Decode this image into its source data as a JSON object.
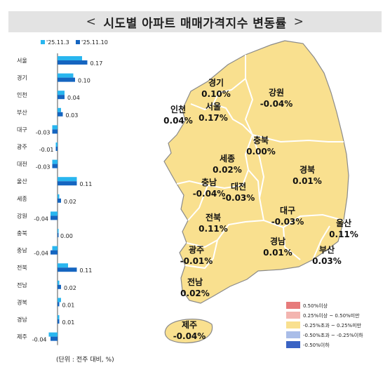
{
  "header": {
    "title": "시도별 아파트 매매가격지수 변동률",
    "left_chevron": "<",
    "right_chevron": ">"
  },
  "colors": {
    "series_1": "#29b6ef",
    "series_2": "#1565c0",
    "map_fill": "#f9e08f",
    "map_stroke": "#ffffff",
    "map_outline": "#7a7a7a"
  },
  "chart_data": {
    "type": "bar",
    "orientation": "horizontal",
    "categories": [
      "서울",
      "경기",
      "인천",
      "부산",
      "대구",
      "광주",
      "대전",
      "울산",
      "세종",
      "강원",
      "충북",
      "충남",
      "전북",
      "전남",
      "경북",
      "경남",
      "제주"
    ],
    "series": [
      {
        "name": "'25.11.3",
        "values": [
          0.14,
          0.09,
          0.04,
          0.02,
          -0.03,
          -0.01,
          -0.03,
          0.11,
          0.01,
          -0.04,
          0.0,
          -0.03,
          0.06,
          0.01,
          0.02,
          0.01,
          -0.05
        ]
      },
      {
        "name": "'25.11.10",
        "values": [
          0.17,
          0.1,
          0.04,
          0.03,
          -0.03,
          -0.01,
          -0.03,
          0.11,
          0.02,
          -0.04,
          0.0,
          -0.04,
          0.11,
          0.02,
          0.01,
          0.01,
          -0.04
        ]
      }
    ],
    "data_labels": [
      "0.17",
      "0.10",
      "0.04",
      "0.03",
      "-0.03",
      "-0.01",
      "-0.03",
      "0.11",
      "0.02",
      "-0.04",
      "0.00",
      "-0.04",
      "0.11",
      "0.02",
      "0.01",
      "0.01",
      "-0.04"
    ],
    "legend_placement": "top",
    "grid": false,
    "note": "(단위 : 전주 대비, %)"
  },
  "map": {
    "regions": [
      {
        "name": "경기",
        "value": "0.10%"
      },
      {
        "name": "강원",
        "value": "-0.04%"
      },
      {
        "name": "인천",
        "value": "0.04%"
      },
      {
        "name": "서울",
        "value": "0.17%"
      },
      {
        "name": "충북",
        "value": "0.00%"
      },
      {
        "name": "세종",
        "value": "0.02%"
      },
      {
        "name": "경북",
        "value": "0.01%"
      },
      {
        "name": "충남",
        "value": "-0.04%"
      },
      {
        "name": "대전",
        "value": "-0.03%"
      },
      {
        "name": "전북",
        "value": "0.11%"
      },
      {
        "name": "대구",
        "value": "-0.03%"
      },
      {
        "name": "울산",
        "value": "0.11%"
      },
      {
        "name": "광주",
        "value": "-0.01%"
      },
      {
        "name": "경남",
        "value": "0.01%"
      },
      {
        "name": "부산",
        "value": "0.03%"
      },
      {
        "name": "전남",
        "value": "0.02%"
      },
      {
        "name": "제주",
        "value": "-0.04%"
      }
    ],
    "legend": [
      {
        "label": "0.50%이상",
        "color": "#e77b7b"
      },
      {
        "label": "0.25%이상 ~ 0.50%미만",
        "color": "#f3b5b0"
      },
      {
        "label": "-0.25%초과 ~ 0.25%미만",
        "color": "#f9e08f"
      },
      {
        "label": "-0.50%초과 ~ -0.25%이하",
        "color": "#a9bde8"
      },
      {
        "label": "-0.50%이하",
        "color": "#3a63c4"
      }
    ]
  }
}
